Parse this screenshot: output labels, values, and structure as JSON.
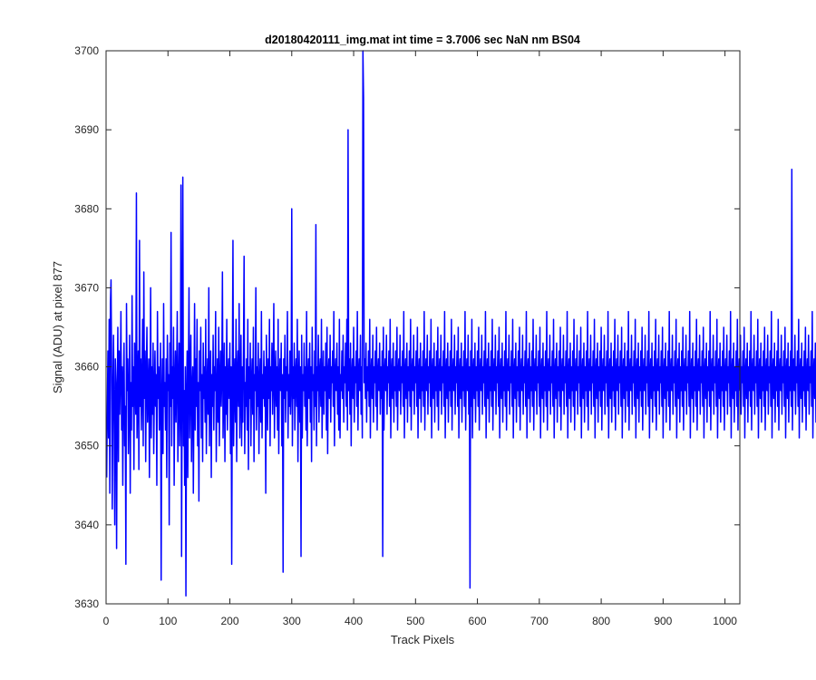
{
  "chart_data": {
    "type": "line",
    "title": "d20180420111_img.mat int time = 3.7006 sec  NaN nm BS04",
    "xlabel": "Track Pixels",
    "ylabel": "Signal (ADU) at pixel 877",
    "xlim": [
      0,
      1024
    ],
    "ylim": [
      3630,
      3700
    ],
    "xticks": [
      0,
      100,
      200,
      300,
      400,
      500,
      600,
      700,
      800,
      900,
      1000
    ],
    "yticks": [
      3630,
      3640,
      3650,
      3660,
      3670,
      3680,
      3690,
      3700
    ],
    "grid": false,
    "line_color": "#0000ff",
    "series": [
      {
        "x_start": 1,
        "x_step": 1,
        "values": [
          3646,
          3655,
          3662,
          3651,
          3666,
          3644,
          3668,
          3671,
          3659,
          3642,
          3657,
          3664,
          3653,
          3640,
          3661,
          3658,
          3637,
          3656,
          3665,
          3648,
          3662,
          3654,
          3659,
          3667,
          3652,
          3660,
          3645,
          3658,
          3663,
          3650,
          3655,
          3635,
          3668,
          3657,
          3661,
          3649,
          3656,
          3664,
          3644,
          3658,
          3652,
          3669,
          3655,
          3660,
          3647,
          3663,
          3658,
          3654,
          3682,
          3651,
          3657,
          3662,
          3647,
          3676,
          3655,
          3661,
          3652,
          3658,
          3666,
          3650,
          3672,
          3656,
          3662,
          3648,
          3659,
          3665,
          3653,
          3657,
          3661,
          3646,
          3656,
          3670,
          3651,
          3660,
          3654,
          3663,
          3649,
          3657,
          3662,
          3655,
          3659,
          3645,
          3667,
          3656,
          3660,
          3652,
          3658,
          3663,
          3633,
          3656,
          3661,
          3649,
          3668,
          3655,
          3658,
          3652,
          3661,
          3646,
          3664,
          3657,
          3659,
          3640,
          3663,
          3655,
          3677,
          3650,
          3660,
          3656,
          3665,
          3645,
          3658,
          3662,
          3653,
          3659,
          3667,
          3648,
          3657,
          3663,
          3650,
          3655,
          3683,
          3636,
          3661,
          3684,
          3650,
          3657,
          3645,
          3660,
          3631,
          3656,
          3662,
          3646,
          3659,
          3670,
          3651,
          3658,
          3664,
          3648,
          3657,
          3660,
          3644,
          3656,
          3668,
          3652,
          3661,
          3655,
          3666,
          3650,
          3658,
          3643,
          3662,
          3657,
          3665,
          3651,
          3659,
          3648,
          3663,
          3656,
          3660,
          3653,
          3666,
          3649,
          3657,
          3661,
          3654,
          3670,
          3650,
          3658,
          3662,
          3646,
          3659,
          3655,
          3664,
          3652,
          3660,
          3657,
          3667,
          3648,
          3656,
          3661,
          3653,
          3665,
          3650,
          3658,
          3662,
          3655,
          3659,
          3672,
          3651,
          3657,
          3663,
          3648,
          3660,
          3654,
          3666,
          3652,
          3658,
          3661,
          3656,
          3663,
          3649,
          3660,
          3635,
          3659,
          3676,
          3650,
          3657,
          3661,
          3653,
          3666,
          3648,
          3659,
          3662,
          3655,
          3668,
          3651,
          3657,
          3664,
          3650,
          3660,
          3653,
          3662,
          3674,
          3649,
          3658,
          3655,
          3661,
          3652,
          3666,
          3647,
          3660,
          3656,
          3663,
          3650,
          3658,
          3661,
          3654,
          3665,
          3648,
          3659,
          3657,
          3670,
          3652,
          3660,
          3655,
          3663,
          3649,
          3658,
          3661,
          3653,
          3667,
          3651,
          3659,
          3656,
          3662,
          3655,
          3660,
          3644,
          3664,
          3658,
          3652,
          3661,
          3656,
          3666,
          3650,
          3660,
          3657,
          3663,
          3654,
          3659,
          3668,
          3651,
          3658,
          3662,
          3655,
          3660,
          3652,
          3666,
          3649,
          3658,
          3661,
          3657,
          3663,
          3650,
          3659,
          3634,
          3661,
          3656,
          3664,
          3653,
          3660,
          3657,
          3667,
          3651,
          3659,
          3655,
          3662,
          3654,
          3658,
          3680,
          3650,
          3660,
          3656,
          3663,
          3652,
          3659,
          3661,
          3655,
          3666,
          3648,
          3658,
          3662,
          3653,
          3660,
          3636,
          3664,
          3651,
          3659,
          3657,
          3663,
          3655,
          3660,
          3652,
          3667,
          3650,
          3658,
          3661,
          3656,
          3663,
          3653,
          3660,
          3648,
          3665,
          3657,
          3659,
          3652,
          3662,
          3655,
          3678,
          3650,
          3660,
          3657,
          3664,
          3653,
          3659,
          3661,
          3655,
          3666,
          3651,
          3658,
          3662,
          3654,
          3660,
          3657,
          3663,
          3652,
          3665,
          3649,
          3659,
          3661,
          3656,
          3664,
          3653,
          3660,
          3658,
          3662,
          3655,
          3667,
          3650,
          3659,
          3661,
          3657,
          3663,
          3654,
          3660,
          3652,
          3666,
          3651,
          3659,
          3657,
          3662,
          3656,
          3664,
          3653,
          3660,
          3658,
          3663,
          3655,
          3666,
          3652,
          3690,
          3657,
          3661,
          3654,
          3663,
          3650,
          3659,
          3661,
          3656,
          3665,
          3653,
          3660,
          3658,
          3662,
          3655,
          3667,
          3652,
          3659,
          3661,
          3657,
          3664,
          3654,
          3660,
          3651,
          3700,
          3694,
          3658,
          3661,
          3656,
          3663,
          3653,
          3660,
          3657,
          3662,
          3655,
          3666,
          3651,
          3659,
          3661,
          3656,
          3664,
          3653,
          3660,
          3658,
          3662,
          3655,
          3665,
          3652,
          3659,
          3661,
          3657,
          3663,
          3654,
          3660,
          3656,
          3662,
          3636,
          3665,
          3652,
          3659,
          3661,
          3657,
          3664,
          3654,
          3660,
          3658,
          3662,
          3655,
          3666,
          3651,
          3659,
          3661,
          3656,
          3663,
          3653,
          3660,
          3657,
          3662,
          3655,
          3665,
          3652,
          3659,
          3661,
          3657,
          3664,
          3654,
          3660,
          3658,
          3662,
          3655,
          3667,
          3651,
          3659,
          3661,
          3656,
          3663,
          3653,
          3660,
          3657,
          3662,
          3655,
          3666,
          3652,
          3659,
          3661,
          3657,
          3664,
          3654,
          3660,
          3658,
          3662,
          3655,
          3665,
          3651,
          3659,
          3661,
          3656,
          3663,
          3653,
          3660,
          3657,
          3662,
          3655,
          3667,
          3652,
          3659,
          3661,
          3657,
          3664,
          3654,
          3660,
          3658,
          3662,
          3655,
          3666,
          3651,
          3659,
          3661,
          3656,
          3663,
          3653,
          3660,
          3657,
          3662,
          3655,
          3665,
          3652,
          3659,
          3661,
          3657,
          3664,
          3654,
          3660,
          3658,
          3662,
          3655,
          3667,
          3651,
          3659,
          3661,
          3656,
          3663,
          3653,
          3660,
          3657,
          3662,
          3655,
          3666,
          3652,
          3659,
          3661,
          3657,
          3664,
          3654,
          3660,
          3658,
          3662,
          3655,
          3665,
          3651,
          3659,
          3661,
          3656,
          3663,
          3653,
          3660,
          3657,
          3662,
          3655,
          3667,
          3652,
          3659,
          3661,
          3657,
          3664,
          3654,
          3660,
          3632,
          3662,
          3655,
          3666,
          3651,
          3659,
          3661,
          3656,
          3663,
          3653,
          3660,
          3657,
          3662,
          3655,
          3665,
          3652,
          3659,
          3661,
          3657,
          3664,
          3654,
          3660,
          3658,
          3662,
          3655,
          3667,
          3651,
          3659,
          3661,
          3656,
          3663,
          3653,
          3660,
          3657,
          3662,
          3655,
          3666,
          3652,
          3659,
          3661,
          3657,
          3664,
          3654,
          3660,
          3658,
          3662,
          3655,
          3665,
          3651,
          3659,
          3661,
          3656,
          3663,
          3653,
          3660,
          3657,
          3662,
          3655,
          3667,
          3652,
          3659,
          3661,
          3657,
          3664,
          3654,
          3660,
          3658,
          3662,
          3655,
          3666,
          3651,
          3659,
          3661,
          3656,
          3663,
          3653,
          3660,
          3657,
          3662,
          3655,
          3665,
          3652,
          3659,
          3661,
          3657,
          3664,
          3654,
          3660,
          3658,
          3662,
          3655,
          3667,
          3651,
          3659,
          3661,
          3656,
          3663,
          3653,
          3660,
          3657,
          3662,
          3655,
          3666,
          3652,
          3659,
          3661,
          3657,
          3664,
          3654,
          3660,
          3658,
          3662,
          3655,
          3665,
          3651,
          3659,
          3661,
          3656,
          3663,
          3653,
          3660,
          3657,
          3662,
          3655,
          3667,
          3652,
          3659,
          3661,
          3657,
          3664,
          3654,
          3660,
          3658,
          3662,
          3655,
          3666,
          3651,
          3659,
          3661,
          3656,
          3663,
          3653,
          3660,
          3657,
          3662,
          3655,
          3665,
          3652,
          3659,
          3661,
          3657,
          3664,
          3654,
          3660,
          3658,
          3662,
          3655,
          3667,
          3651,
          3659,
          3661,
          3656,
          3663,
          3653,
          3660,
          3657,
          3662,
          3655,
          3666,
          3652,
          3659,
          3661,
          3657,
          3664,
          3654,
          3660,
          3658,
          3662,
          3655,
          3665,
          3651,
          3659,
          3661,
          3656,
          3663,
          3653,
          3660,
          3657,
          3662,
          3655,
          3667,
          3652,
          3659,
          3661,
          3657,
          3664,
          3654,
          3660,
          3658,
          3662,
          3655,
          3666,
          3651,
          3659,
          3661,
          3656,
          3663,
          3653,
          3660,
          3657,
          3662,
          3655,
          3665,
          3652,
          3659,
          3661,
          3657,
          3664,
          3654,
          3660,
          3658,
          3662,
          3655,
          3667,
          3651,
          3659,
          3661,
          3656,
          3663,
          3653,
          3660,
          3657,
          3662,
          3655,
          3666,
          3652,
          3659,
          3661,
          3657,
          3664,
          3654,
          3660,
          3658,
          3662,
          3655,
          3665,
          3651,
          3659,
          3661,
          3656,
          3663,
          3653,
          3660,
          3657,
          3662,
          3655,
          3667,
          3652,
          3659,
          3661,
          3657,
          3664,
          3654,
          3660,
          3658,
          3662,
          3655,
          3666,
          3651,
          3659,
          3661,
          3656,
          3663,
          3653,
          3660,
          3657,
          3662,
          3655,
          3665,
          3652,
          3659,
          3661,
          3657,
          3664,
          3654,
          3660,
          3658,
          3662,
          3655,
          3667,
          3651,
          3659,
          3661,
          3656,
          3663,
          3653,
          3660,
          3657,
          3662,
          3655,
          3666,
          3652,
          3659,
          3661,
          3657,
          3664,
          3654,
          3660,
          3658,
          3662,
          3655,
          3665,
          3651,
          3659,
          3661,
          3656,
          3663,
          3653,
          3660,
          3657,
          3662,
          3655,
          3667,
          3652,
          3659,
          3661,
          3657,
          3664,
          3654,
          3660,
          3658,
          3662,
          3655,
          3666,
          3651,
          3659,
          3661,
          3656,
          3663,
          3653,
          3660,
          3657,
          3662,
          3655,
          3665,
          3652,
          3659,
          3661,
          3657,
          3664,
          3654,
          3660,
          3658,
          3662,
          3655,
          3667,
          3651,
          3659,
          3661,
          3656,
          3663,
          3653,
          3660,
          3657,
          3662,
          3655,
          3666,
          3652,
          3659,
          3661,
          3657,
          3664,
          3654,
          3660,
          3658,
          3662,
          3655,
          3665,
          3651,
          3659,
          3661,
          3656,
          3663,
          3653,
          3660,
          3657,
          3662,
          3655,
          3667,
          3652,
          3659,
          3661,
          3657,
          3664,
          3654,
          3660,
          3658,
          3662,
          3655,
          3666,
          3651,
          3659,
          3661,
          3656,
          3663,
          3653,
          3660,
          3657,
          3662,
          3655,
          3665,
          3652,
          3659,
          3661,
          3657,
          3664,
          3654,
          3660,
          3658,
          3662,
          3655,
          3667,
          3651,
          3659,
          3661,
          3656,
          3663,
          3653,
          3660,
          3657,
          3662,
          3655,
          3666,
          3652,
          3659,
          3661,
          3657,
          3664,
          3654,
          3660,
          3658,
          3662,
          3655,
          3665,
          3651,
          3659,
          3661,
          3656,
          3663,
          3653,
          3660,
          3657,
          3662,
          3655,
          3667,
          3652,
          3659,
          3661,
          3657,
          3664,
          3654,
          3660,
          3658,
          3662,
          3655,
          3666,
          3651,
          3659,
          3661,
          3656,
          3663,
          3653,
          3660,
          3657,
          3662,
          3655,
          3665,
          3652,
          3659,
          3661,
          3657,
          3664,
          3654,
          3660,
          3658,
          3662,
          3655,
          3667,
          3651,
          3659,
          3661,
          3656,
          3663,
          3653,
          3660,
          3657,
          3662,
          3655,
          3666,
          3652,
          3659,
          3661,
          3657,
          3664,
          3654,
          3660,
          3658,
          3662,
          3655,
          3665,
          3651,
          3659,
          3661,
          3656,
          3663,
          3653,
          3660,
          3657,
          3662,
          3655,
          3685,
          3652,
          3659,
          3661,
          3657,
          3664,
          3654,
          3660,
          3658,
          3662,
          3655,
          3666,
          3651,
          3659,
          3661,
          3656,
          3663,
          3653,
          3660,
          3657,
          3662,
          3655,
          3665,
          3652,
          3659,
          3661,
          3657,
          3664,
          3654,
          3660,
          3658,
          3662,
          3655,
          3667,
          3651,
          3659,
          3661,
          3656,
          3663,
          3653,
          3660,
          3657,
          3662,
          3655,
          3666,
          3652,
          3659,
          3661,
          3657,
          3664,
          3654,
          3660,
          3658,
          3662,
          3655,
          3665,
          3651,
          3659,
          3661,
          3656,
          3663,
          3653,
          3660,
          3657,
          3662,
          3655,
          3660
        ]
      }
    ]
  }
}
